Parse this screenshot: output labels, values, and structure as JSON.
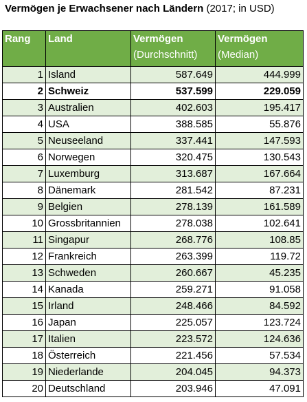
{
  "title": {
    "bold": "Vermögen je Erwachsener nach Ländern",
    "normal": " (2017; in USD)"
  },
  "colors": {
    "header_bg": "#70ad47",
    "stripe_bg": "#e2efda"
  },
  "table": {
    "headers": [
      {
        "main": "Rang",
        "sub": ""
      },
      {
        "main": "Land",
        "sub": ""
      },
      {
        "main": "Vermögen",
        "sub": "(Durchschnitt)"
      },
      {
        "main": "Vermögen",
        "sub": "(Median)"
      }
    ],
    "highlighted_row": 2,
    "rows": [
      {
        "rank": "1",
        "country": "Island",
        "mean": "587.649",
        "median": "444.999"
      },
      {
        "rank": "2",
        "country": "Schweiz",
        "mean": "537.599",
        "median": "229.059"
      },
      {
        "rank": "3",
        "country": "Australien",
        "mean": "402.603",
        "median": "195.417"
      },
      {
        "rank": "4",
        "country": "USA",
        "mean": "388.585",
        "median": "55.876"
      },
      {
        "rank": "5",
        "country": "Neuseeland",
        "mean": "337.441",
        "median": "147.593"
      },
      {
        "rank": "6",
        "country": "Norwegen",
        "mean": "320.475",
        "median": "130.543"
      },
      {
        "rank": "7",
        "country": "Luxemburg",
        "mean": "313.687",
        "median": "167.664"
      },
      {
        "rank": "8",
        "country": "Dänemark",
        "mean": "281.542",
        "median": "87.231"
      },
      {
        "rank": "9",
        "country": "Belgien",
        "mean": "278.139",
        "median": "161.589"
      },
      {
        "rank": "10",
        "country": "Grossbritannien",
        "mean": "278.038",
        "median": "102.641"
      },
      {
        "rank": "11",
        "country": "Singapur",
        "mean": "268.776",
        "median": "108.85"
      },
      {
        "rank": "12",
        "country": "Frankreich",
        "mean": "263.399",
        "median": "119.72"
      },
      {
        "rank": "13",
        "country": "Schweden",
        "mean": "260.667",
        "median": "45.235"
      },
      {
        "rank": "14",
        "country": "Kanada",
        "mean": "259.271",
        "median": "91.058"
      },
      {
        "rank": "15",
        "country": "Irland",
        "mean": "248.466",
        "median": "84.592"
      },
      {
        "rank": "16",
        "country": "Japan",
        "mean": "225.057",
        "median": "123.724"
      },
      {
        "rank": "17",
        "country": "Italien",
        "mean": "223.572",
        "median": "124.636"
      },
      {
        "rank": "18",
        "country": "Österreich",
        "mean": "221.456",
        "median": "57.534"
      },
      {
        "rank": "19",
        "country": "Niederlande",
        "mean": "204.045",
        "median": "94.373"
      },
      {
        "rank": "20",
        "country": "Deutschland",
        "mean": "203.946",
        "median": "47.091"
      }
    ]
  }
}
